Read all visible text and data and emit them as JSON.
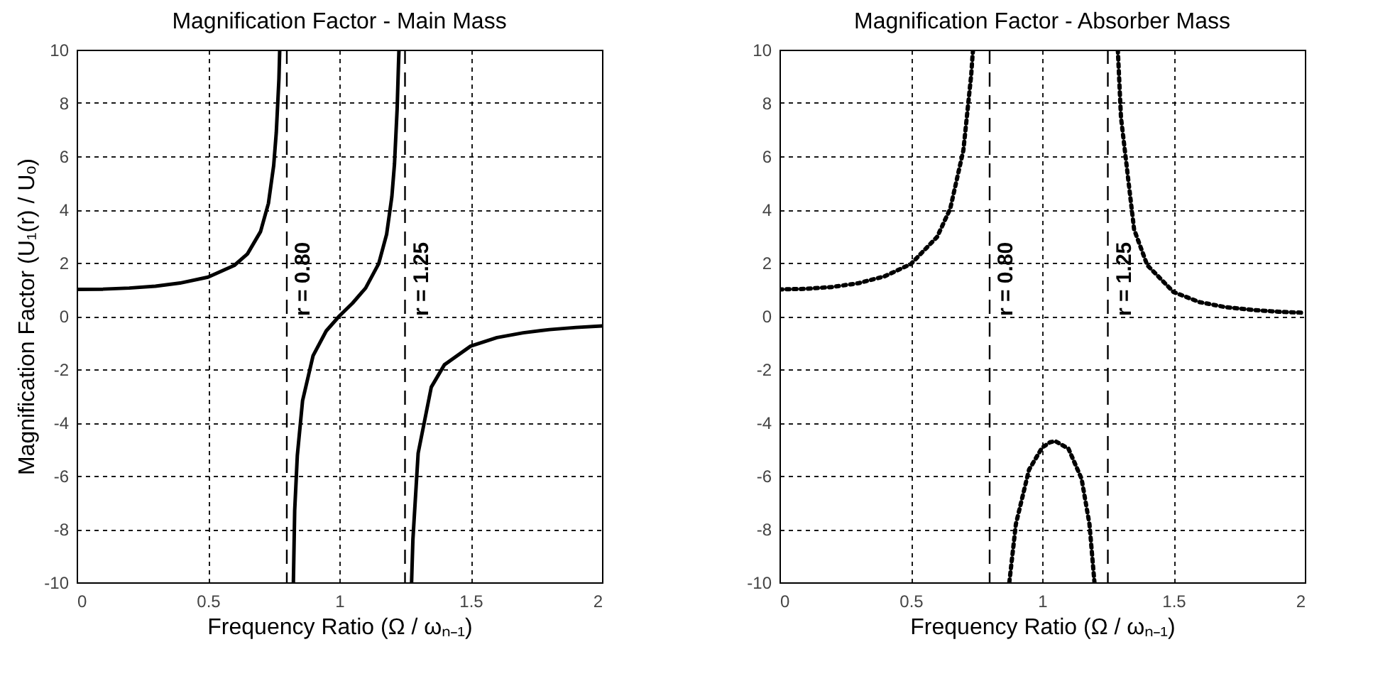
{
  "chart_data": [
    {
      "type": "line",
      "title": "Magnification Factor - Main Mass",
      "xlabel": "Frequency Ratio (Ω / ωₙ₋₁)",
      "ylabel": "Magnification Factor (U₁(r) / Uₒ)",
      "xlim": [
        0,
        2
      ],
      "ylim": [
        -10,
        10
      ],
      "xticks": [
        0,
        0.5,
        1,
        1.5,
        2
      ],
      "yticks": [
        -10,
        -8,
        -6,
        -4,
        -2,
        0,
        2,
        4,
        6,
        8,
        10
      ],
      "grid": true,
      "line_style": "solid",
      "marker": "none",
      "x": [
        0,
        0.1,
        0.2,
        0.3,
        0.4,
        0.5,
        0.6,
        0.65,
        0.7,
        0.73,
        0.75,
        0.76,
        0.77,
        0.773,
        null,
        0.825,
        0.83,
        0.84,
        0.86,
        0.9,
        0.95,
        1.0,
        1.05,
        1.1,
        1.15,
        1.18,
        1.2,
        1.21,
        1.22,
        1.225,
        1.227,
        null,
        1.275,
        1.28,
        1.3,
        1.35,
        1.4,
        1.5,
        1.6,
        1.7,
        1.8,
        1.9,
        2.0
      ],
      "series": [
        {
          "color": "#000000",
          "values": [
            1.0,
            1.01,
            1.05,
            1.12,
            1.25,
            1.46,
            1.9,
            2.33,
            3.17,
            4.23,
            5.65,
            6.9,
            8.9,
            10,
            null,
            -10,
            -7.3,
            -5.24,
            -3.18,
            -1.49,
            -0.56,
            0,
            0.48,
            1.05,
            1.97,
            3.07,
            4.49,
            5.72,
            7.77,
            9.4,
            10,
            null,
            -10,
            -8.4,
            -5.15,
            -2.67,
            -1.83,
            -1.13,
            -0.81,
            -0.63,
            -0.51,
            -0.43,
            -0.37
          ]
        }
      ],
      "ref_lines": [
        {
          "axis": "x",
          "value": 0.8,
          "label": "r = 0.80",
          "line_style": "dashed",
          "color": "#000000"
        },
        {
          "axis": "x",
          "value": 1.25,
          "label": "r = 1.25",
          "line_style": "dashed",
          "color": "#000000"
        }
      ]
    },
    {
      "type": "line",
      "title": "Magnification Factor - Absorber Mass",
      "xlabel": "Frequency Ratio (Ω / ωₙ₋₁)",
      "xlim": [
        0,
        2
      ],
      "ylim": [
        -10,
        10
      ],
      "xticks": [
        0,
        0.5,
        1,
        1.5,
        2
      ],
      "yticks": [
        -10,
        -8,
        -6,
        -4,
        -2,
        0,
        2,
        4,
        6,
        8,
        10
      ],
      "grid": true,
      "line_style": "dotted",
      "marker": "none",
      "x": [
        0,
        0.1,
        0.2,
        0.3,
        0.4,
        0.5,
        0.6,
        0.65,
        0.7,
        0.73,
        0.735,
        0.737,
        null,
        0.875,
        0.9,
        0.95,
        1.0,
        1.03,
        1.05,
        1.1,
        1.15,
        1.18,
        1.199,
        null,
        1.288,
        1.3,
        1.35,
        1.4,
        1.5,
        1.6,
        1.7,
        1.8,
        1.9,
        2.0
      ],
      "series": [
        {
          "color": "#000000",
          "values": [
            1.0,
            1.02,
            1.09,
            1.23,
            1.49,
            1.95,
            2.97,
            4.03,
            6.22,
            9.07,
            9.8,
            10,
            null,
            -10,
            -7.81,
            -5.77,
            -4.94,
            -4.74,
            -4.7,
            -4.98,
            -6.11,
            -7.81,
            -10,
            null,
            10,
            7.46,
            3.25,
            1.91,
            0.9,
            0.52,
            0.33,
            0.23,
            0.16,
            0.12
          ]
        }
      ],
      "ref_lines": [
        {
          "axis": "x",
          "value": 0.8,
          "label": "r = 0.80",
          "line_style": "dashed",
          "color": "#000000"
        },
        {
          "axis": "x",
          "value": 1.25,
          "label": "r = 1.25",
          "line_style": "dashed",
          "color": "#000000"
        }
      ]
    }
  ]
}
